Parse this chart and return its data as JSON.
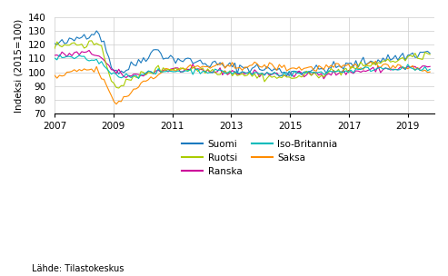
{
  "title": "",
  "ylabel": "Indeksi (2015=100)",
  "source_text": "Lähde: Tilastokeskus",
  "ylim": [
    70,
    140
  ],
  "yticks": [
    70,
    80,
    90,
    100,
    110,
    120,
    130,
    140
  ],
  "xticks": [
    2007,
    2009,
    2011,
    2013,
    2015,
    2017,
    2019
  ],
  "colors": {
    "Suomi": "#1a7abf",
    "Ranska": "#cc0099",
    "Saksa": "#ff8c00",
    "Ruotsi": "#aacc00",
    "Iso-Britannia": "#00bbbb"
  },
  "background_color": "#ffffff",
  "grid_color": "#cccccc"
}
